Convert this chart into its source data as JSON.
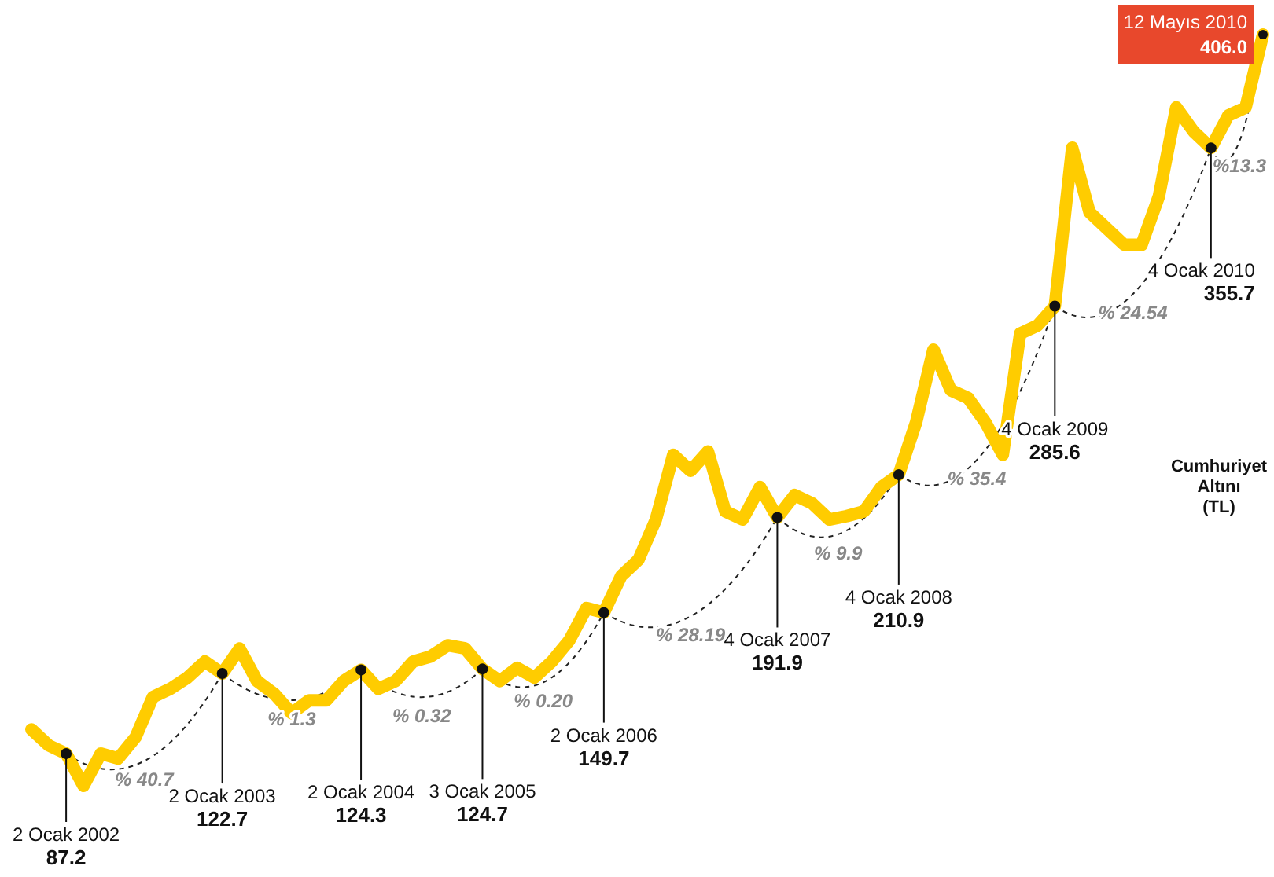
{
  "chart_data": {
    "type": "line",
    "categories": [
      null,
      null,
      null,
      null,
      null,
      null,
      null,
      null,
      null,
      null,
      null,
      null,
      null,
      null,
      null,
      null,
      null,
      null,
      null,
      null,
      null,
      null,
      null,
      null,
      null,
      null,
      null,
      null,
      null,
      null,
      null,
      null,
      null,
      null,
      null,
      null,
      null,
      null,
      null,
      null,
      null,
      null,
      null,
      null,
      null,
      null,
      null,
      null,
      null,
      null,
      null,
      null,
      null,
      null,
      null,
      null,
      null,
      null,
      null,
      null,
      null,
      null,
      null,
      null,
      null,
      null,
      null,
      null,
      null,
      null,
      null,
      null
    ],
    "series": [
      {
        "color": "#ffcc00",
        "values": [
          97.9,
          90.8,
          87.2,
          72.9,
          87.2,
          85,
          94.4,
          112.3,
          115.9,
          120.9,
          128,
          122.7,
          133.8,
          119.4,
          113.7,
          105.1,
          110.8,
          110.8,
          119.4,
          124.3,
          115.9,
          119.4,
          128,
          130.2,
          135.2,
          133.8,
          124.7,
          119.4,
          125.2,
          120.9,
          128,
          137.3,
          151.7,
          149.7,
          166,
          173.2,
          191,
          219.7,
          212.6,
          221.2,
          194.6,
          191,
          205.4,
          191.9,
          201.8,
          198.2,
          191,
          192.5,
          194.6,
          205.4,
          210.9,
          234,
          266.3,
          248.3,
          244.8,
          234,
          219.7,
          273.4,
          277,
          285.6,
          355.8,
          327.2,
          320,
          312.8,
          312.8,
          334.3,
          373.7,
          363,
          355.7,
          370.1,
          373.7,
          406.0
        ],
        "value_labels": [
          null,
          null,
          "87.2",
          null,
          null,
          null,
          null,
          null,
          null,
          null,
          null,
          "122.7",
          null,
          null,
          null,
          null,
          null,
          null,
          null,
          "124.3",
          null,
          null,
          null,
          null,
          null,
          null,
          "124.7",
          null,
          null,
          null,
          null,
          null,
          null,
          "149.7",
          null,
          null,
          null,
          null,
          null,
          null,
          null,
          null,
          null,
          "191.9",
          null,
          null,
          null,
          null,
          null,
          null,
          "210.9",
          null,
          null,
          null,
          null,
          null,
          null,
          null,
          null,
          "285.6",
          null,
          null,
          null,
          null,
          null,
          null,
          null,
          null,
          "355.7",
          null,
          null,
          "406.0"
        ]
      }
    ],
    "annotations": [
      "2 Ocak 2002",
      "2 Ocak 2003",
      "2 Ocak 2004",
      "3 Ocak 2005",
      "2 Ocak 2006",
      "4 Ocak 2007",
      "4 Ocak 2008",
      "4 Ocak 2009",
      "4 Ocak 2010",
      "12 Mayıs 2010",
      "% 40.7",
      "% 1.3",
      "% 0.32",
      "% 0.20",
      "% 28.19",
      "% 9.9",
      "% 35.4",
      "% 24.54",
      "%13.3",
      "Cumhuriyet Altını (TL)"
    ]
  }
}
